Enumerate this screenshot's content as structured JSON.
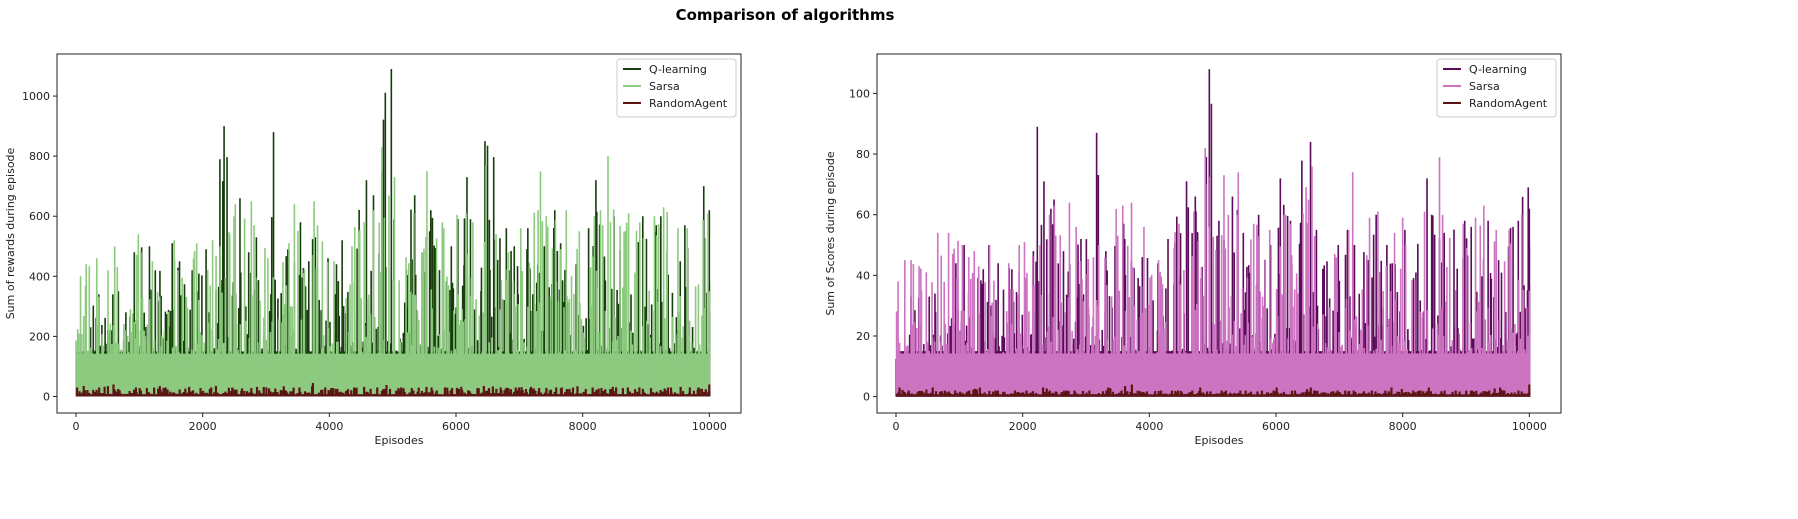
{
  "figure_title": "Comparison of algorithms",
  "chart_data": [
    {
      "type": "line",
      "title": "",
      "xlabel": "Episodes",
      "ylabel": "Sum of rewards during episode",
      "xlim": [
        -300,
        10500
      ],
      "ylim": [
        -55,
        1140
      ],
      "xticks": [
        0,
        2000,
        4000,
        6000,
        8000,
        10000
      ],
      "yticks": [
        0,
        200,
        400,
        600,
        800,
        1000
      ],
      "legend": "top-right",
      "grid": false,
      "bin_episodes": [
        0,
        200,
        400,
        600,
        800,
        1000,
        1200,
        1400,
        1600,
        1800,
        2000,
        2200,
        2400,
        2600,
        2800,
        3000,
        3200,
        3400,
        3600,
        3800,
        4000,
        4200,
        4400,
        4600,
        4800,
        5000,
        5200,
        5400,
        5600,
        5800,
        6000,
        6200,
        6400,
        6600,
        6800,
        7000,
        7200,
        7400,
        7600,
        7800,
        8000,
        8200,
        8400,
        8600,
        8800,
        9000,
        9200,
        9400,
        9600,
        9800,
        10000
      ],
      "series": [
        {
          "name": "Q-learning",
          "color": "#163d0b",
          "typical_floor": 200,
          "bin_max": [
            150,
            340,
            340,
            350,
            480,
            500,
            420,
            510,
            450,
            420,
            490,
            900,
            660,
            480,
            530,
            880,
            490,
            580,
            530,
            460,
            440,
            520,
            720,
            670,
            1090,
            590,
            670,
            550,
            620,
            500,
            730,
            590,
            850,
            560,
            500,
            560,
            500,
            620,
            510,
            440,
            560,
            720,
            600,
            550,
            600,
            570,
            600,
            450,
            570,
            700,
            620
          ]
        },
        {
          "name": "Sarsa",
          "color": "#8dca80",
          "typical_floor": 190,
          "bin_max": [
            440,
            460,
            420,
            500,
            540,
            480,
            450,
            520,
            420,
            510,
            520,
            500,
            640,
            650,
            570,
            460,
            510,
            640,
            650,
            570,
            450,
            500,
            580,
            620,
            830,
            730,
            610,
            750,
            580,
            560,
            610,
            580,
            770,
            540,
            480,
            560,
            750,
            600,
            620,
            550,
            600,
            620,
            800,
            610,
            580,
            600,
            630,
            560,
            560,
            610,
            350
          ]
        },
        {
          "name": "RandomAgent",
          "color": "#5c1414",
          "typical_floor": 10,
          "bin_max": [
            35,
            30,
            40,
            25,
            30,
            28,
            35,
            30,
            32,
            28,
            30,
            35,
            30,
            28,
            32,
            30,
            34,
            30,
            45,
            30,
            28,
            30,
            32,
            30,
            38,
            30,
            28,
            32,
            30,
            30,
            32,
            28,
            35,
            30,
            30,
            32,
            28,
            30,
            30,
            34,
            30,
            28,
            32,
            30,
            30,
            28,
            30,
            32,
            30,
            30,
            40
          ]
        }
      ]
    },
    {
      "type": "line",
      "title": "",
      "xlabel": "Episodes",
      "ylabel": "Sum of Scores during episode",
      "xlim": [
        -300,
        10500
      ],
      "ylim": [
        -5.4,
        113
      ],
      "xticks": [
        0,
        2000,
        4000,
        6000,
        8000,
        10000
      ],
      "yticks": [
        0,
        20,
        40,
        60,
        80,
        100
      ],
      "legend": "top-right",
      "grid": false,
      "bin_episodes": [
        0,
        200,
        400,
        600,
        800,
        1000,
        1200,
        1400,
        1600,
        1800,
        2000,
        2200,
        2400,
        2600,
        2800,
        3000,
        3200,
        3400,
        3600,
        3800,
        4000,
        4200,
        4400,
        4600,
        4800,
        5000,
        5200,
        5400,
        5600,
        5800,
        6000,
        6200,
        6400,
        6600,
        6800,
        7000,
        7200,
        7400,
        7600,
        7800,
        8000,
        8200,
        8400,
        8600,
        8800,
        9000,
        9200,
        9400,
        9600,
        9800,
        10000
      ],
      "series": [
        {
          "name": "Q-learning",
          "color": "#5a0b5a",
          "typical_floor": 20,
          "bin_max": [
            15,
            33,
            33,
            34,
            44,
            50,
            42,
            50,
            44,
            42,
            48,
            89,
            65,
            48,
            52,
            87,
            48,
            57,
            52,
            46,
            44,
            52,
            71,
            66,
            108,
            58,
            66,
            54,
            60,
            50,
            72,
            58,
            84,
            55,
            50,
            55,
            50,
            60,
            50,
            44,
            55,
            72,
            60,
            54,
            58,
            56,
            58,
            45,
            56,
            69,
            62
          ]
        },
        {
          "name": "Sarsa",
          "color": "#cc74c1",
          "typical_floor": 19,
          "bin_max": [
            45,
            45,
            41,
            54,
            54,
            50,
            48,
            50,
            44,
            50,
            51,
            50,
            63,
            64,
            56,
            46,
            50,
            63,
            64,
            56,
            45,
            49,
            57,
            61,
            82,
            73,
            60,
            74,
            57,
            55,
            60,
            57,
            76,
            53,
            47,
            55,
            74,
            59,
            61,
            54,
            59,
            61,
            79,
            60,
            57,
            59,
            63,
            55,
            55,
            60,
            35
          ]
        },
        {
          "name": "RandomAgent",
          "color": "#5c1414",
          "typical_floor": 1,
          "bin_max": [
            3,
            2,
            3,
            2,
            2,
            2,
            3,
            2,
            2,
            2,
            2,
            3,
            2,
            2,
            2,
            2,
            3,
            2,
            4,
            2,
            2,
            2,
            2,
            2,
            3,
            2,
            2,
            2,
            2,
            2,
            3,
            2,
            3,
            2,
            2,
            2,
            2,
            2,
            2,
            3,
            2,
            2,
            3,
            2,
            2,
            2,
            2,
            3,
            2,
            2,
            4
          ]
        }
      ]
    }
  ]
}
